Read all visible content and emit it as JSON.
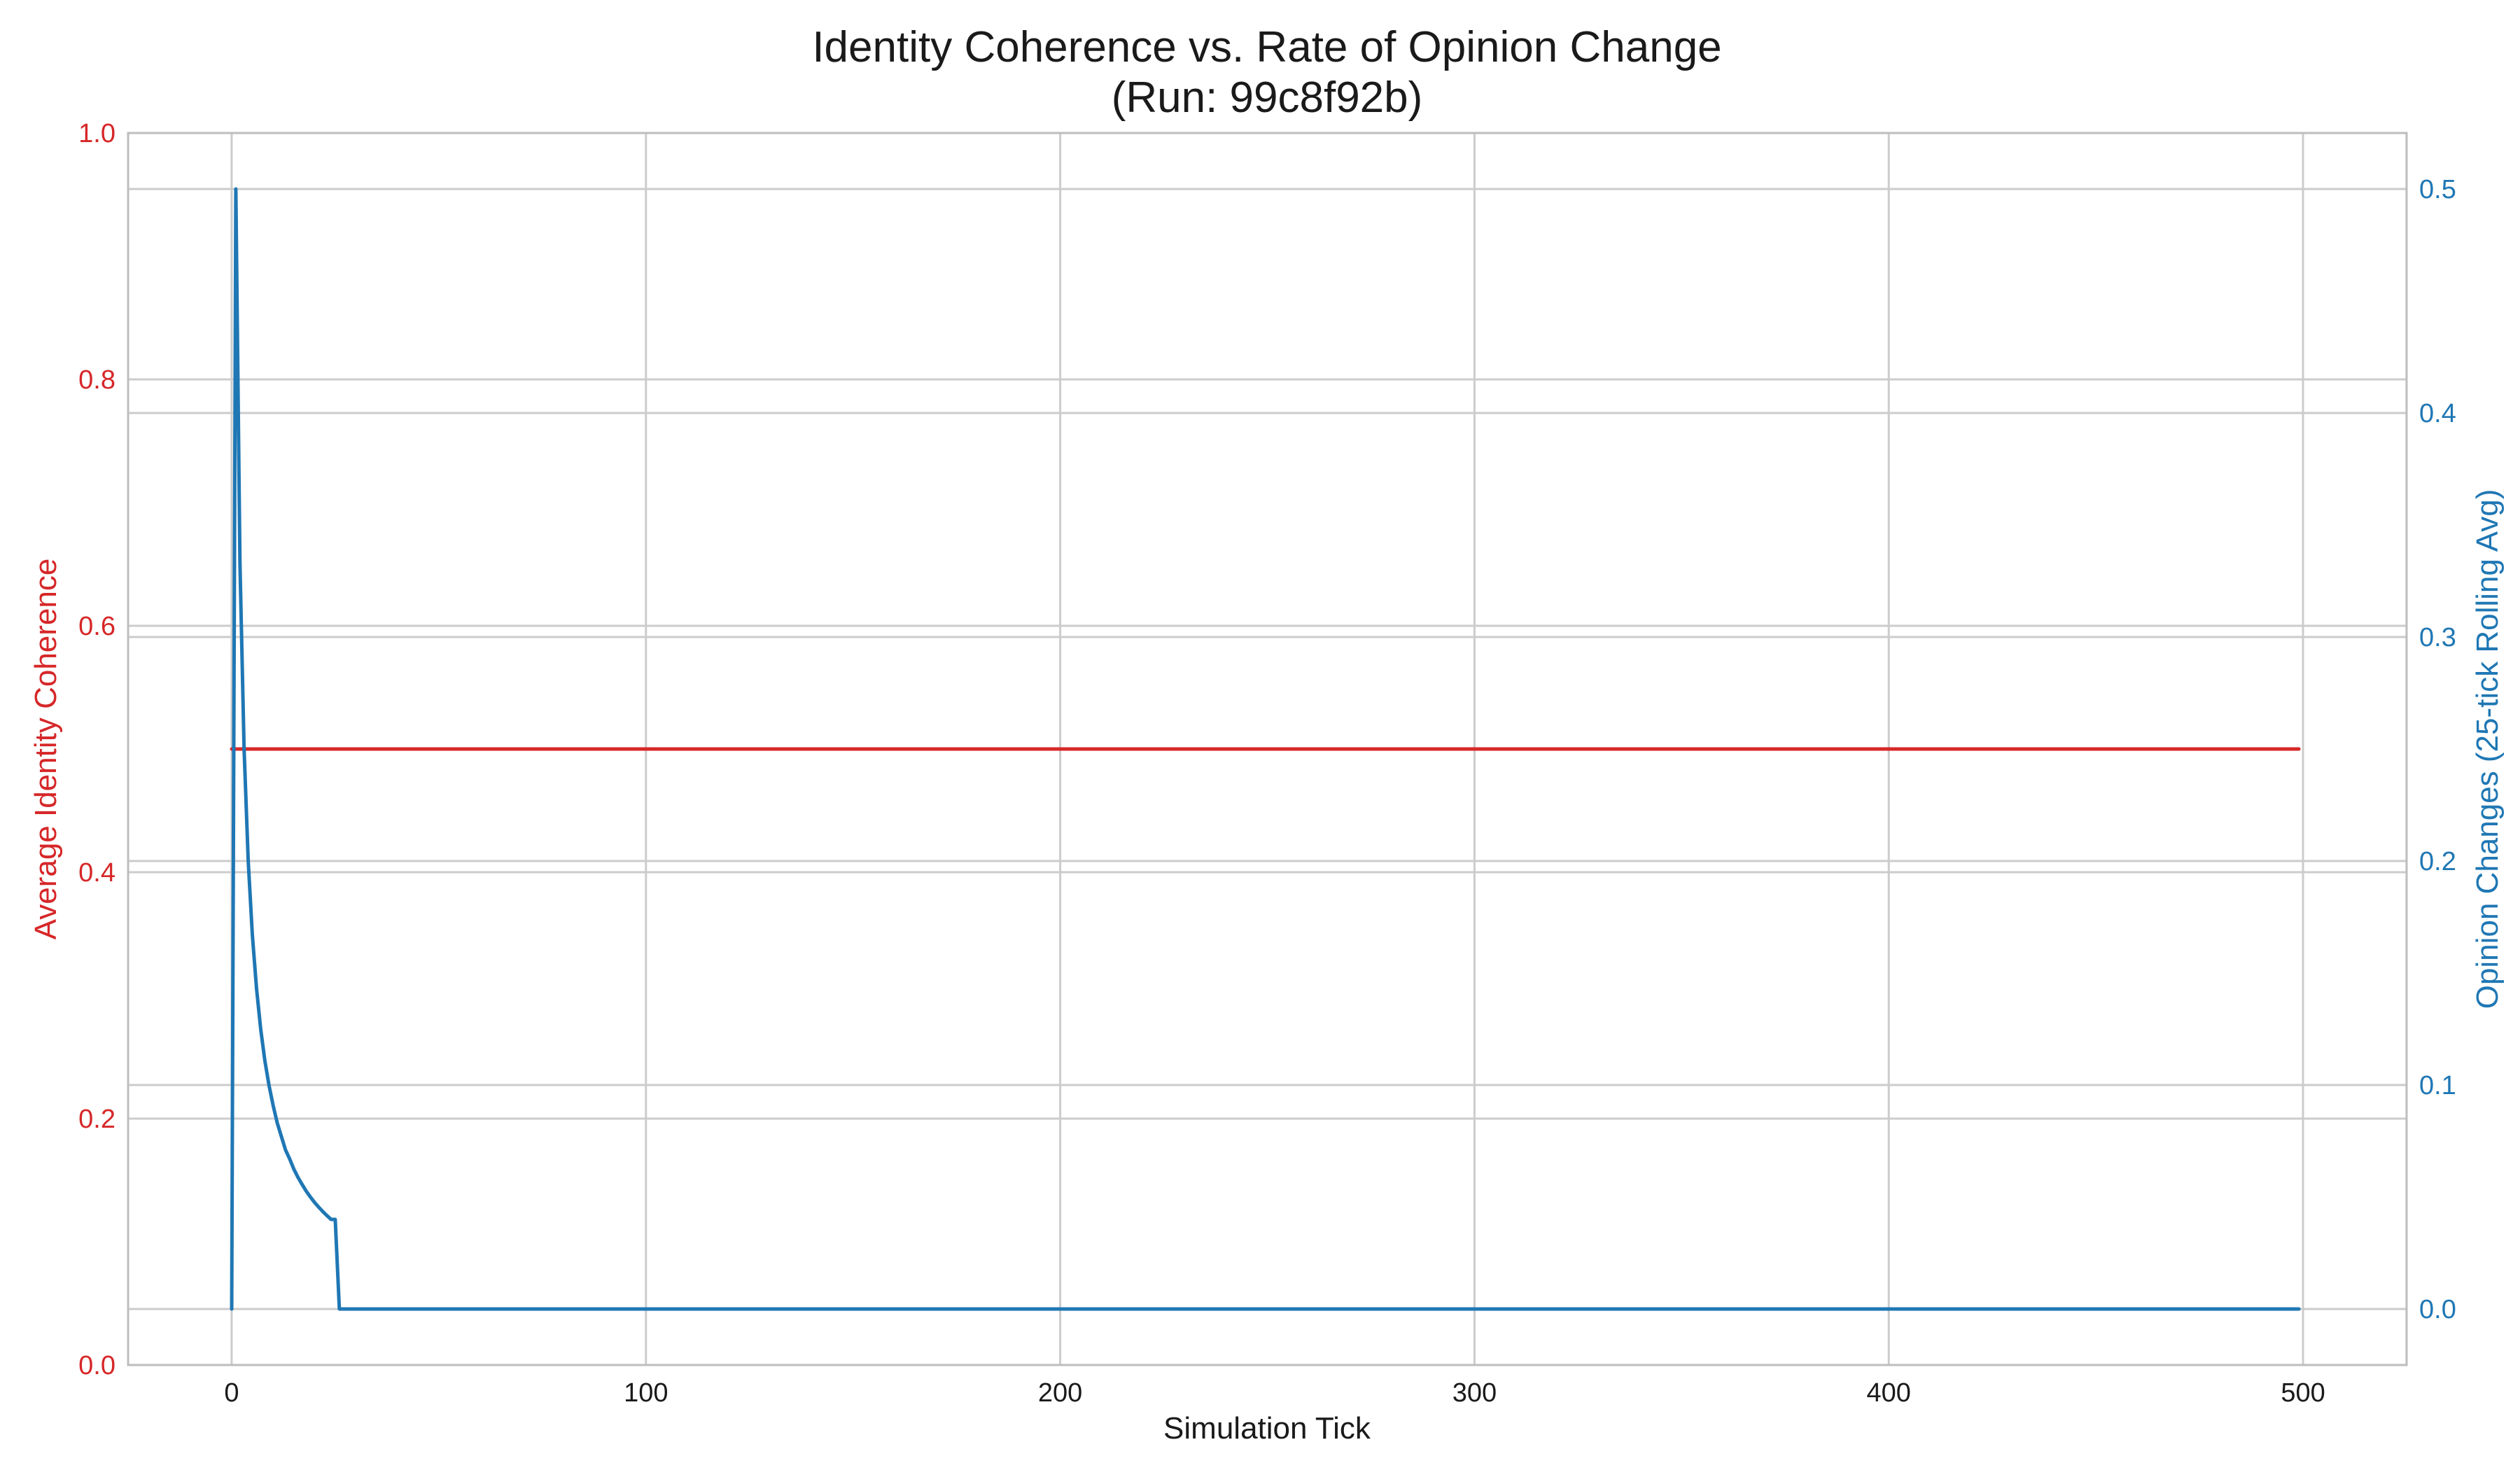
{
  "chart_data": {
    "type": "line",
    "title": "Identity Coherence vs. Rate of Opinion Change\n(Run: 99c8f92b)",
    "xlabel": "Simulation Tick",
    "ylabel_left": "Average Identity Coherence",
    "ylabel_right": "Opinion Changes (25-tick Rolling Avg)",
    "xlim": [
      -25,
      525
    ],
    "ylim_left": [
      0,
      1.0
    ],
    "ylim_right": [
      -0.025,
      0.525
    ],
    "x_ticks": [
      0,
      100,
      200,
      300,
      400,
      500
    ],
    "y_left_ticks": [
      0.0,
      0.2,
      0.4,
      0.6,
      0.8,
      1.0
    ],
    "y_right_ticks": [
      0.0,
      0.1,
      0.2,
      0.3,
      0.4,
      0.5
    ],
    "grid": true,
    "colors": {
      "left_axis": "#d62728",
      "right_axis": "#1f77b4"
    },
    "series": [
      {
        "axis": "left",
        "color": "#d62728",
        "x": [
          0,
          499
        ],
        "values": [
          0.5,
          0.5
        ]
      },
      {
        "axis": "right",
        "color": "#1f77b4",
        "x": [
          0,
          1,
          2,
          3,
          4,
          5,
          6,
          7,
          8,
          9,
          10,
          11,
          12,
          13,
          14,
          15,
          16,
          17,
          18,
          19,
          20,
          21,
          22,
          23,
          24,
          25,
          26,
          499
        ],
        "values": [
          0.0,
          0.5,
          0.333,
          0.25,
          0.2,
          0.167,
          0.143,
          0.125,
          0.111,
          0.1,
          0.091,
          0.083,
          0.077,
          0.071,
          0.067,
          0.0625,
          0.0588,
          0.0556,
          0.0526,
          0.05,
          0.0476,
          0.0455,
          0.0435,
          0.0417,
          0.04,
          0.04,
          0.0,
          0.0
        ]
      }
    ]
  }
}
